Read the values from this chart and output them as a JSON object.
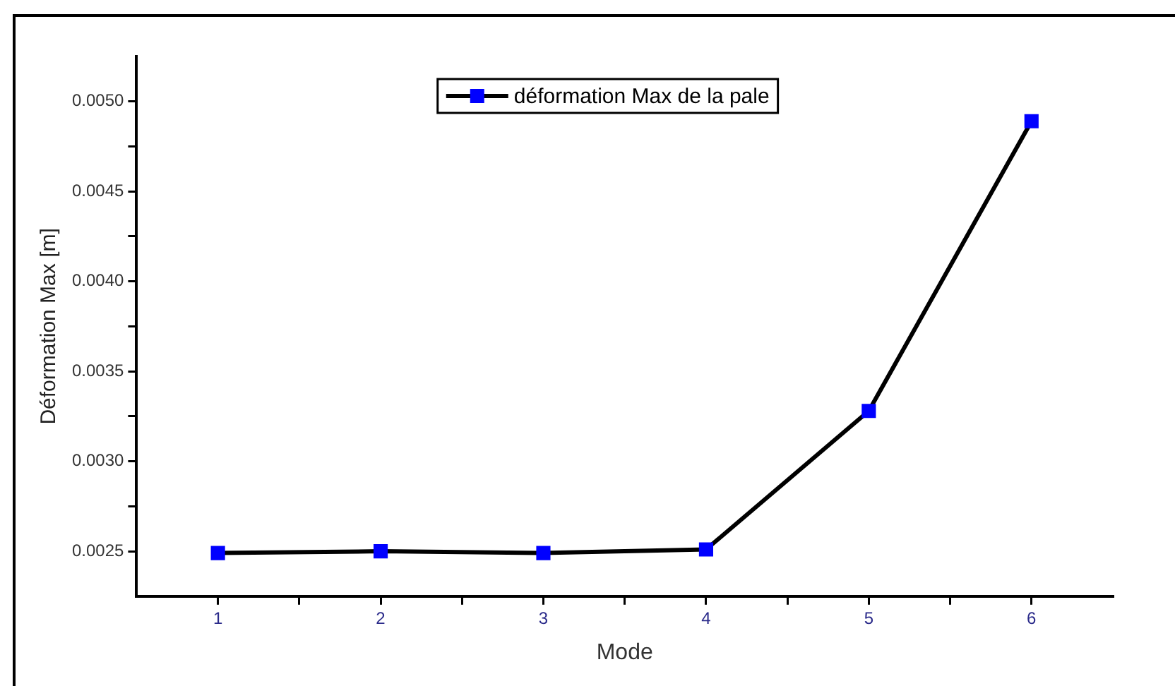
{
  "chart_data": {
    "type": "line",
    "xlabel": "Mode",
    "ylabel": "Déformation Max [m]",
    "x": [
      1,
      2,
      3,
      4,
      5,
      6
    ],
    "series": [
      {
        "name": "déformation Max de la pale",
        "color": "#000000",
        "colors": [
          "#0000ff",
          "#0000ff",
          "#0000ff",
          "#0000ff",
          "#0000ff",
          "#0000ff"
        ],
        "values": [
          0.00249,
          0.0025,
          0.00249,
          0.00251,
          0.00328,
          0.00489
        ]
      }
    ],
    "xlim": [
      0.5,
      6.5
    ],
    "xticks": [
      1,
      {
        "value": 1.5,
        "label": null
      },
      2,
      {
        "value": 2.5,
        "label": null
      },
      3,
      {
        "value": 3.5,
        "label": null
      },
      4,
      {
        "value": 4.5,
        "label": null
      },
      5,
      {
        "value": 5.5,
        "label": null
      },
      6
    ],
    "ylim": [
      0.00225,
      0.00525
    ],
    "yticks": [
      {
        "value": 0.0025,
        "label": "0.0025"
      },
      {
        "value": 0.00275,
        "label": null
      },
      {
        "value": 0.003,
        "label": "0.0030"
      },
      {
        "value": 0.00325,
        "label": null
      },
      {
        "value": 0.0035,
        "label": "0.0035"
      },
      {
        "value": 0.00375,
        "label": null
      },
      {
        "value": 0.004,
        "label": "0.0040"
      },
      {
        "value": 0.00425,
        "label": null
      },
      {
        "value": 0.0045,
        "label": "0.0045"
      },
      {
        "value": 0.00475,
        "label": null
      },
      {
        "value": 0.005,
        "label": "0.0050"
      }
    ],
    "grid": false,
    "legend": "top",
    "marker": "square",
    "line_style": "solid"
  }
}
